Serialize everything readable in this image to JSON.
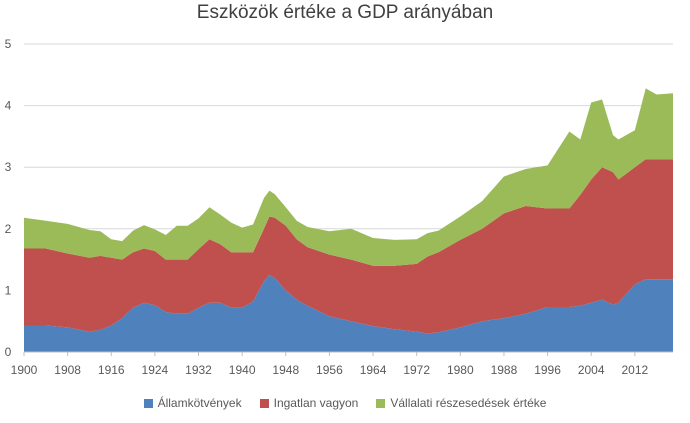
{
  "chart_data": {
    "type": "area",
    "stacked": true,
    "title": "Eszközök értéke a GDP arányában",
    "xlabel": "",
    "ylabel": "",
    "xlim": [
      1900,
      2019
    ],
    "ylim": [
      0,
      5
    ],
    "y_ticks": [
      "0",
      "1",
      "2",
      "3",
      "4",
      "5"
    ],
    "x_ticks": [
      "1900",
      "1908",
      "1916",
      "1924",
      "1932",
      "1940",
      "1948",
      "1956",
      "1964",
      "1972",
      "1980",
      "1988",
      "1996",
      "2004",
      "2012"
    ],
    "grid": "horizontal",
    "legend_position": "bottom",
    "x": [
      1900,
      1904,
      1908,
      1912,
      1914,
      1916,
      1918,
      1920,
      1922,
      1924,
      1926,
      1928,
      1930,
      1932,
      1934,
      1936,
      1938,
      1940,
      1942,
      1944,
      1945,
      1946,
      1948,
      1950,
      1952,
      1956,
      1960,
      1964,
      1968,
      1972,
      1974,
      1976,
      1980,
      1984,
      1988,
      1992,
      1996,
      2000,
      2002,
      2004,
      2006,
      2008,
      2009,
      2012,
      2014,
      2016,
      2019
    ],
    "series": [
      {
        "name": "Államkötvények",
        "color": "#4f81bd",
        "values": [
          0.43,
          0.43,
          0.4,
          0.33,
          0.36,
          0.43,
          0.55,
          0.72,
          0.8,
          0.76,
          0.65,
          0.62,
          0.62,
          0.72,
          0.8,
          0.8,
          0.72,
          0.72,
          0.82,
          1.15,
          1.25,
          1.2,
          1.0,
          0.85,
          0.75,
          0.58,
          0.5,
          0.42,
          0.37,
          0.33,
          0.3,
          0.32,
          0.4,
          0.5,
          0.55,
          0.62,
          0.73,
          0.73,
          0.75,
          0.8,
          0.85,
          0.77,
          0.8,
          1.1,
          1.18,
          1.18,
          1.18
        ]
      },
      {
        "name": "Ingatlan vagyon",
        "color": "#c0504d",
        "values": [
          1.25,
          1.25,
          1.2,
          1.2,
          1.2,
          1.1,
          0.95,
          0.9,
          0.88,
          0.88,
          0.85,
          0.88,
          0.88,
          0.95,
          1.03,
          0.95,
          0.9,
          0.9,
          0.8,
          0.85,
          0.95,
          0.98,
          1.05,
          0.98,
          0.95,
          1.0,
          1.0,
          0.98,
          1.03,
          1.1,
          1.25,
          1.3,
          1.42,
          1.5,
          1.7,
          1.75,
          1.6,
          1.6,
          1.8,
          2.0,
          2.15,
          2.15,
          2.0,
          1.9,
          1.95,
          1.95,
          1.95
        ]
      },
      {
        "name": "Vállalati részesedések értéke",
        "color": "#9bbb59",
        "values": [
          0.5,
          0.45,
          0.48,
          0.45,
          0.4,
          0.3,
          0.3,
          0.35,
          0.38,
          0.35,
          0.4,
          0.55,
          0.55,
          0.5,
          0.52,
          0.48,
          0.48,
          0.4,
          0.45,
          0.5,
          0.42,
          0.38,
          0.3,
          0.3,
          0.33,
          0.38,
          0.5,
          0.45,
          0.42,
          0.4,
          0.38,
          0.35,
          0.38,
          0.45,
          0.6,
          0.6,
          0.7,
          1.25,
          0.9,
          1.25,
          1.1,
          0.6,
          0.65,
          0.6,
          1.15,
          1.05,
          1.07
        ]
      }
    ]
  }
}
